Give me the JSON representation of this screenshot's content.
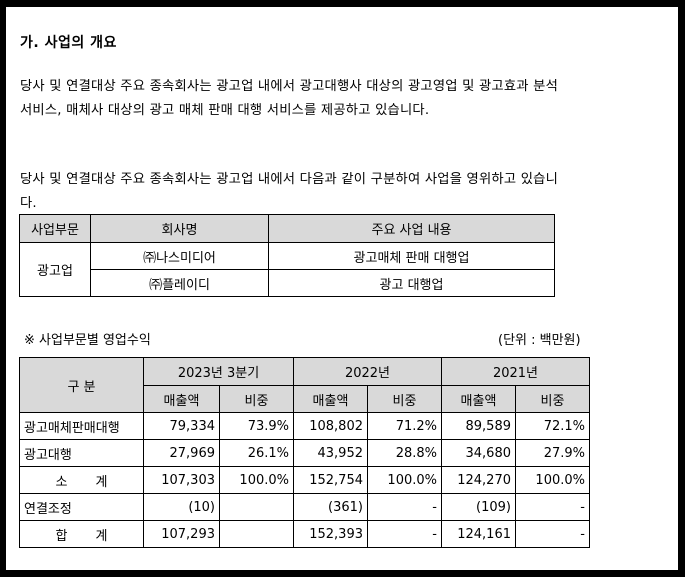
{
  "heading": "가. 사업의 개요",
  "para1": "당사 및 연결대상 주요 종속회사는 광고업 내에서 광고대행사 대상의 광고영업 및 광고효과 분석 서비스, 매체사 대상의 광고 매체 판매 대행 서비스를 제공하고 있습니다.",
  "para2": "당사 및 연결대상 주요 종속회사는 광고업 내에서 다음과 같이 구분하여 사업을 영위하고 있습니다.",
  "seg_table": {
    "headers": [
      "사업부문",
      "회사명",
      "주요 사업 내용"
    ],
    "segment": "광고업",
    "rows": [
      {
        "company": "㈜나스미디어",
        "business": "광고매체 판매 대행업"
      },
      {
        "company": "㈜플레이디",
        "business": "광고 대행업"
      }
    ]
  },
  "note": "※ 사업부문별 영업수익",
  "unit": "(단위 : 백만원)",
  "rev_table": {
    "category_header": "구 분",
    "periods": [
      "2023년 3분기",
      "2022년",
      "2021년"
    ],
    "sub_headers": [
      "매출액",
      "비중",
      "매출액",
      "비중",
      "매출액",
      "비중"
    ],
    "rows": [
      {
        "label": "광고매체판매대행",
        "cells": [
          "79,334",
          "73.9%",
          "108,802",
          "71.2%",
          "89,589",
          "72.1%"
        ]
      },
      {
        "label": "광고대행",
        "cells": [
          "27,969",
          "26.1%",
          "43,952",
          "28.8%",
          "34,680",
          "27.9%"
        ]
      },
      {
        "label": "소 계",
        "cells": [
          "107,303",
          "100.0%",
          "152,754",
          "100.0%",
          "124,270",
          "100.0%"
        ]
      },
      {
        "label": "연결조정",
        "cells": [
          "(10)",
          "",
          "(361)",
          "-",
          "(109)",
          "-"
        ]
      },
      {
        "label": "합 계",
        "cells": [
          "107,293",
          "",
          "152,393",
          "-",
          "124,161",
          "-"
        ]
      }
    ]
  }
}
